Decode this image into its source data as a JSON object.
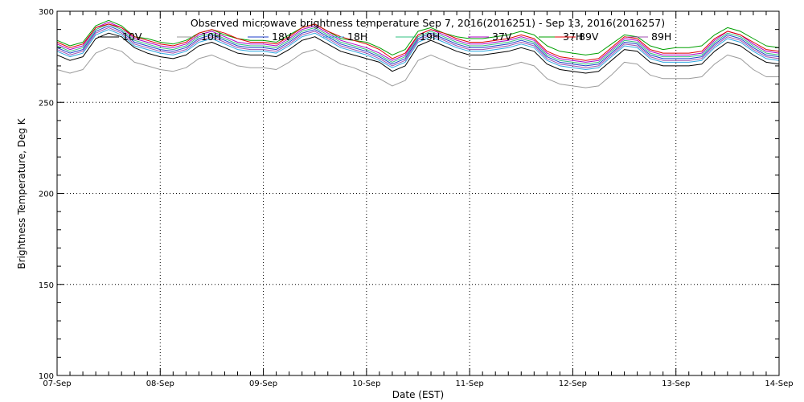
{
  "chart_data": {
    "type": "line",
    "title": "Observed microwave brightness temperature Sep  7, 2016(2016251) - Sep 13, 2016(2016257)",
    "xlabel": "Date (EST)",
    "ylabel": "Brightness Temperature, Deg K",
    "xlim": [
      0,
      7
    ],
    "ylim": [
      100,
      300
    ],
    "x_ticks": [
      {
        "value": 0,
        "label": "07-Sep"
      },
      {
        "value": 1,
        "label": "08-Sep"
      },
      {
        "value": 2,
        "label": "09-Sep"
      },
      {
        "value": 3,
        "label": "10-Sep"
      },
      {
        "value": 4,
        "label": "11-Sep"
      },
      {
        "value": 5,
        "label": "12-Sep"
      },
      {
        "value": 6,
        "label": "13-Sep"
      },
      {
        "value": 7,
        "label": "14-Sep"
      }
    ],
    "y_ticks": [
      100,
      150,
      200,
      250,
      300
    ],
    "grid": true,
    "legend_placement": "top",
    "x": [
      0,
      0.125,
      0.25,
      0.375,
      0.5,
      0.625,
      0.75,
      0.875,
      1,
      1.125,
      1.25,
      1.375,
      1.5,
      1.625,
      1.75,
      1.875,
      2,
      2.125,
      2.25,
      2.375,
      2.5,
      2.625,
      2.75,
      2.875,
      3,
      3.125,
      3.25,
      3.375,
      3.5,
      3.625,
      3.75,
      3.875,
      4,
      4.125,
      4.25,
      4.375,
      4.5,
      4.625,
      4.75,
      4.875,
      5,
      5.125,
      5.25,
      5.375,
      5.5,
      5.625,
      5.75,
      5.875,
      6,
      6.125,
      6.25,
      6.375,
      6.5,
      6.625,
      6.75,
      6.875,
      7
    ],
    "series": [
      {
        "name": "10V",
        "color": "#000000",
        "values": [
          276,
          273,
          275,
          285,
          288,
          286,
          280,
          277,
          275,
          274,
          276,
          281,
          283,
          280,
          277,
          276,
          276,
          275,
          279,
          284,
          286,
          282,
          278,
          276,
          274,
          272,
          267,
          270,
          281,
          284,
          281,
          278,
          276,
          276,
          277,
          278,
          280,
          278,
          271,
          268,
          267,
          266,
          267,
          273,
          279,
          278,
          272,
          270,
          270,
          270,
          271,
          278,
          283,
          281,
          276,
          272,
          271
        ]
      },
      {
        "name": "10H",
        "color": "#9a9a9a",
        "values": [
          268,
          266,
          268,
          277,
          280,
          278,
          272,
          270,
          268,
          267,
          269,
          274,
          276,
          273,
          270,
          269,
          269,
          268,
          272,
          277,
          279,
          275,
          271,
          269,
          266,
          263,
          259,
          262,
          273,
          276,
          273,
          270,
          268,
          268,
          269,
          270,
          272,
          270,
          263,
          260,
          259,
          258,
          259,
          265,
          272,
          271,
          265,
          263,
          263,
          263,
          264,
          271,
          276,
          274,
          268,
          264,
          264
        ]
      },
      {
        "name": "18V",
        "color": "#1e3ec8",
        "values": [
          280,
          277,
          279,
          289,
          292,
          289,
          283,
          281,
          279,
          278,
          280,
          285,
          287,
          284,
          281,
          280,
          280,
          279,
          283,
          288,
          290,
          286,
          282,
          280,
          278,
          275,
          271,
          274,
          285,
          288,
          285,
          282,
          280,
          280,
          281,
          282,
          284,
          282,
          275,
          272,
          271,
          270,
          271,
          277,
          283,
          282,
          276,
          274,
          274,
          274,
          275,
          282,
          287,
          285,
          280,
          276,
          275
        ]
      },
      {
        "name": "18H",
        "color": "#2fa8e0",
        "values": [
          278,
          275,
          277,
          287,
          290,
          287,
          281,
          279,
          277,
          276,
          278,
          283,
          285,
          282,
          279,
          278,
          278,
          277,
          281,
          286,
          288,
          284,
          280,
          278,
          276,
          273,
          269,
          272,
          283,
          286,
          283,
          280,
          278,
          278,
          279,
          280,
          282,
          280,
          273,
          270,
          269,
          268,
          269,
          275,
          281,
          280,
          274,
          272,
          272,
          272,
          273,
          280,
          285,
          283,
          278,
          274,
          273
        ]
      },
      {
        "name": "19H",
        "color": "#30c080",
        "values": [
          281,
          278,
          280,
          290,
          293,
          290,
          284,
          282,
          280,
          279,
          281,
          286,
          288,
          285,
          282,
          281,
          281,
          280,
          284,
          289,
          291,
          287,
          283,
          281,
          279,
          276,
          272,
          275,
          286,
          289,
          286,
          283,
          281,
          281,
          282,
          283,
          285,
          283,
          276,
          273,
          272,
          271,
          272,
          278,
          284,
          283,
          277,
          275,
          275,
          275,
          276,
          283,
          288,
          286,
          281,
          277,
          276
        ]
      },
      {
        "name": "37V",
        "color": "#b000c8",
        "values": [
          282,
          279,
          281,
          291,
          294,
          291,
          285,
          283,
          281,
          280,
          282,
          287,
          289,
          286,
          283,
          282,
          282,
          281,
          285,
          290,
          292,
          288,
          284,
          282,
          280,
          277,
          273,
          276,
          287,
          290,
          287,
          284,
          282,
          282,
          283,
          284,
          286,
          284,
          277,
          274,
          273,
          272,
          273,
          279,
          285,
          284,
          278,
          276,
          276,
          276,
          277,
          284,
          289,
          287,
          282,
          278,
          277
        ]
      },
      {
        "name": "37H",
        "color": "#00a000",
        "values": [
          284,
          281,
          283,
          292,
          295,
          292,
          286,
          285,
          283,
          282,
          284,
          288,
          290,
          287,
          285,
          284,
          284,
          283,
          287,
          291,
          293,
          289,
          285,
          284,
          283,
          280,
          276,
          279,
          289,
          291,
          288,
          286,
          285,
          285,
          286,
          287,
          289,
          287,
          281,
          278,
          277,
          276,
          277,
          282,
          287,
          286,
          281,
          279,
          280,
          280,
          281,
          287,
          291,
          289,
          285,
          281,
          280
        ]
      },
      {
        "name": "89V",
        "color": "#e00000",
        "values": [
          283,
          280,
          282,
          291,
          293,
          291,
          286,
          284,
          282,
          281,
          283,
          288,
          290,
          288,
          285,
          283,
          283,
          282,
          286,
          291,
          293,
          289,
          286,
          284,
          282,
          279,
          274,
          277,
          287,
          290,
          288,
          285,
          283,
          283,
          284,
          285,
          287,
          285,
          278,
          275,
          274,
          273,
          274,
          280,
          286,
          285,
          279,
          277,
          277,
          277,
          278,
          285,
          289,
          287,
          283,
          279,
          278
        ]
      },
      {
        "name": "89H",
        "color": "#a050b0",
        "values": [
          279,
          276,
          278,
          288,
          291,
          288,
          282,
          280,
          278,
          277,
          279,
          284,
          286,
          283,
          280,
          279,
          279,
          278,
          282,
          287,
          289,
          285,
          281,
          279,
          277,
          274,
          270,
          273,
          284,
          287,
          284,
          281,
          279,
          279,
          280,
          281,
          283,
          281,
          274,
          271,
          270,
          269,
          270,
          276,
          282,
          281,
          275,
          273,
          273,
          273,
          274,
          281,
          286,
          284,
          279,
          275,
          274
        ]
      }
    ]
  }
}
